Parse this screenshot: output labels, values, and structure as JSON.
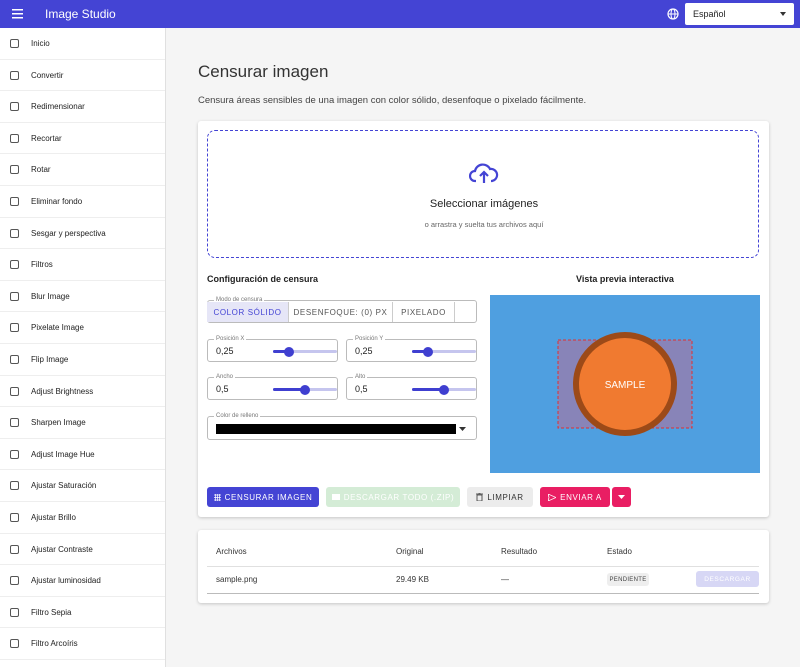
{
  "header": {
    "title": "Image Studio",
    "language": "Español"
  },
  "sidebar": {
    "items": [
      "Inicio",
      "Convertir",
      "Redimensionar",
      "Recortar",
      "Rotar",
      "Eliminar fondo",
      "Sesgar y perspectiva",
      "Filtros",
      "Blur Image",
      "Pixelate Image",
      "Flip Image",
      "Adjust Brightness",
      "Sharpen Image",
      "Adjust Image Hue",
      "Ajustar Saturación",
      "Ajustar Brillo",
      "Ajustar Contraste",
      "Ajustar luminosidad",
      "Filtro Sepia",
      "Filtro Arcoíris"
    ]
  },
  "main": {
    "title": "Censurar imagen",
    "description": "Censura áreas sensibles de una imagen con color sólido, desenfoque o pixelado fácilmente.",
    "dropzone": {
      "title": "Seleccionar imágenes",
      "subtitle": "o arrastra y suelta tus archivos aquí"
    },
    "config": {
      "title": "Configuración de censura",
      "mode_label": "Modo de censura",
      "modes": [
        "COLOR SÓLIDO",
        "DESENFOQUE: (0) PX",
        "PIXELADO"
      ],
      "fields": [
        {
          "label": "Posición X",
          "value": "0,25"
        },
        {
          "label": "Posición Y",
          "value": "0,25"
        },
        {
          "label": "Ancho",
          "value": "0,5"
        },
        {
          "label": "Alto",
          "value": "0,5"
        }
      ],
      "color_label": "Color de relleno"
    },
    "preview": {
      "title": "Vista previa interactiva",
      "sample": "SAMPLE"
    },
    "actions": [
      "CENSURAR IMAGEN",
      "DESCARGAR TODO (.ZIP)",
      "LIMPIAR",
      "ENVIAR A"
    ],
    "table": {
      "headers": [
        "Archivos",
        "Original",
        "Resultado",
        "Estado"
      ],
      "rows": [
        [
          "sample.png",
          "29.49 KB",
          "—",
          "PENDIENTE",
          "DESCARGAR"
        ]
      ]
    }
  }
}
